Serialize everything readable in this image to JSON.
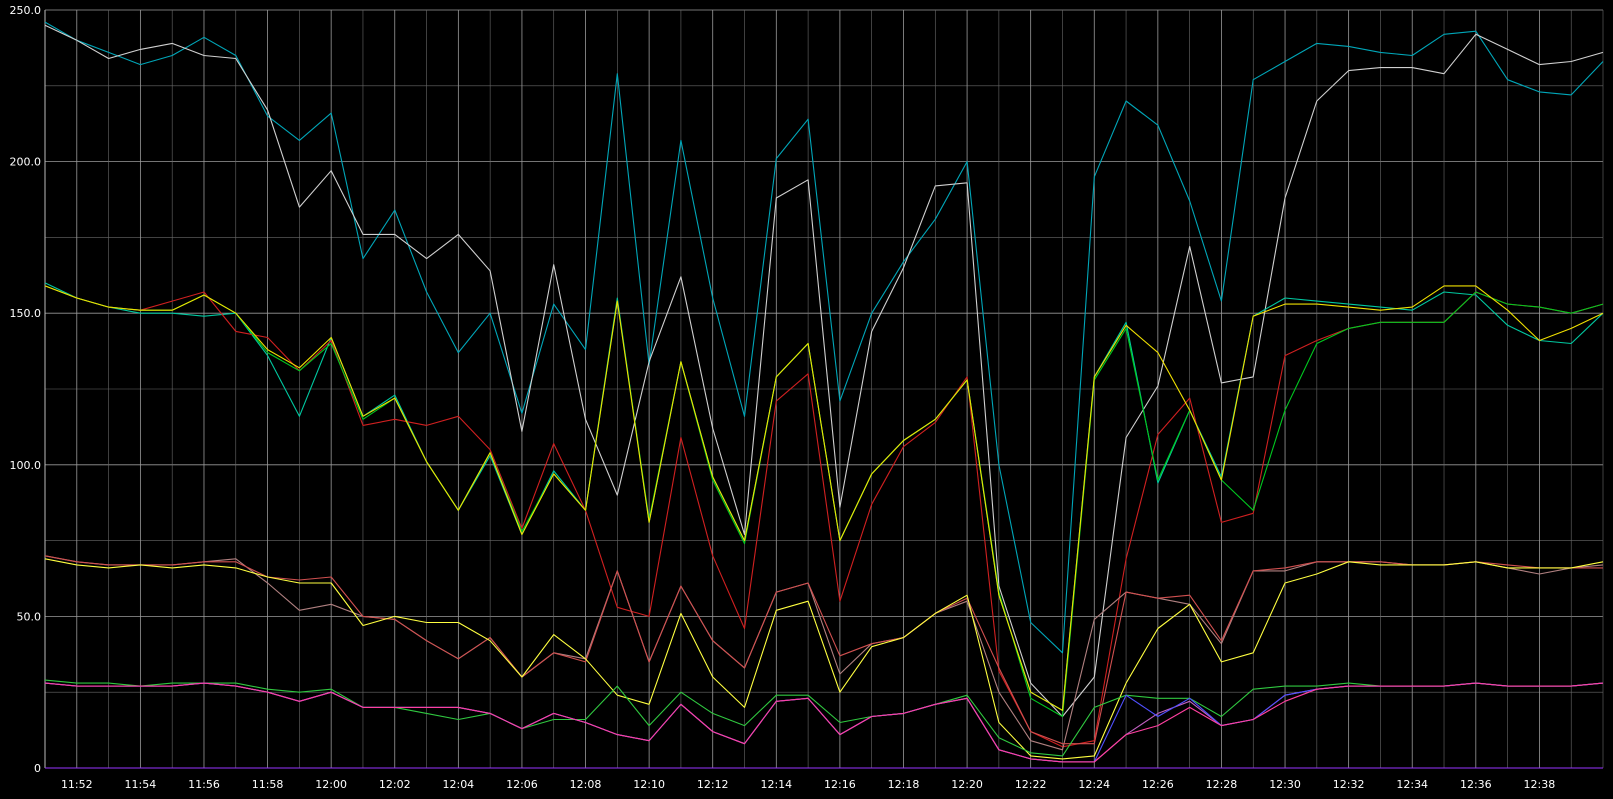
{
  "chart_data": {
    "type": "line",
    "title": "",
    "xlabel": "",
    "ylabel": "",
    "ylim": [
      0,
      250
    ],
    "grid": true,
    "legend": "none",
    "background": "#000000",
    "y_ticks": [
      {
        "value": 0,
        "label": "0"
      },
      {
        "value": 50,
        "label": "50.0"
      },
      {
        "value": 100,
        "label": "100.0"
      },
      {
        "value": 150,
        "label": "150.0"
      },
      {
        "value": 200,
        "label": "200.0"
      },
      {
        "value": 250,
        "label": "250.0"
      }
    ],
    "x_ticks": [
      {
        "index": 1,
        "label": "11:52"
      },
      {
        "index": 3,
        "label": "11:54"
      },
      {
        "index": 5,
        "label": "11:56"
      },
      {
        "index": 7,
        "label": "11:58"
      },
      {
        "index": 9,
        "label": "12:00"
      },
      {
        "index": 11,
        "label": "12:02"
      },
      {
        "index": 13,
        "label": "12:04"
      },
      {
        "index": 15,
        "label": "12:06"
      },
      {
        "index": 17,
        "label": "12:08"
      },
      {
        "index": 19,
        "label": "12:10"
      },
      {
        "index": 21,
        "label": "12:12"
      },
      {
        "index": 23,
        "label": "12:14"
      },
      {
        "index": 25,
        "label": "12:16"
      },
      {
        "index": 27,
        "label": "12:18"
      },
      {
        "index": 29,
        "label": "12:20"
      },
      {
        "index": 31,
        "label": "12:22"
      },
      {
        "index": 33,
        "label": "12:24"
      },
      {
        "index": 35,
        "label": "12:26"
      },
      {
        "index": 37,
        "label": "12:28"
      },
      {
        "index": 39,
        "label": "12:30"
      },
      {
        "index": 41,
        "label": "12:32"
      },
      {
        "index": 43,
        "label": "12:34"
      },
      {
        "index": 45,
        "label": "12:36"
      },
      {
        "index": 47,
        "label": "12:38"
      }
    ],
    "categories": [
      "11:51",
      "11:52",
      "11:53",
      "11:54",
      "11:55",
      "11:56",
      "11:57",
      "11:58",
      "11:59",
      "12:00",
      "12:01",
      "12:02",
      "12:03",
      "12:04",
      "12:05",
      "12:06",
      "12:07",
      "12:08",
      "12:09",
      "12:10",
      "12:11",
      "12:12",
      "12:13",
      "12:14",
      "12:15",
      "12:16",
      "12:17",
      "12:18",
      "12:19",
      "12:20",
      "12:21",
      "12:22",
      "12:23",
      "12:24",
      "12:25",
      "12:26",
      "12:27",
      "12:28",
      "12:29",
      "12:30",
      "12:31",
      "12:32",
      "12:33",
      "12:34",
      "12:35",
      "12:36",
      "12:37",
      "12:38",
      "12:39",
      "12:40"
    ],
    "series": [
      {
        "color": "#00a6b8",
        "values": [
          246,
          240,
          236,
          232,
          235,
          241,
          235,
          215,
          207,
          216,
          168,
          184,
          157,
          137,
          150,
          117,
          153,
          138,
          229,
          133,
          207,
          155,
          116,
          201,
          214,
          121,
          150,
          167,
          181,
          200,
          100,
          48,
          38,
          195,
          220,
          212,
          187,
          154,
          227,
          233,
          239,
          238,
          236,
          235,
          242,
          243,
          227,
          223,
          222,
          233
        ]
      },
      {
        "color": "#d0d0d0",
        "values": [
          245,
          240,
          234,
          237,
          239,
          235,
          234,
          217,
          185,
          197,
          176,
          176,
          168,
          176,
          164,
          111,
          166,
          115,
          90,
          134,
          162,
          112,
          77,
          188,
          194,
          86,
          144,
          165,
          192,
          193,
          60,
          28,
          17,
          30,
          109,
          126,
          172,
          127,
          129,
          188,
          220,
          230,
          231,
          231,
          229,
          242,
          237,
          232,
          233,
          236
        ]
      },
      {
        "color": "#00c8a0",
        "values": [
          160,
          155,
          152,
          150,
          150,
          149,
          150,
          136,
          116,
          142,
          116,
          123,
          101,
          85,
          103,
          77,
          98,
          85,
          155,
          81,
          134,
          96,
          75,
          129,
          140,
          75,
          97,
          108,
          115,
          128,
          57,
          25,
          19,
          129,
          147,
          94,
          118,
          96,
          149,
          155,
          154,
          153,
          152,
          151,
          157,
          156,
          146,
          141,
          140,
          150
        ]
      },
      {
        "color": "#d02020",
        "values": [
          159,
          155,
          152,
          151,
          154,
          157,
          144,
          142,
          131,
          141,
          113,
          115,
          113,
          116,
          105,
          79,
          107,
          85,
          53,
          50,
          109,
          70,
          46,
          121,
          130,
          55,
          87,
          106,
          114,
          129,
          32,
          12,
          7,
          9,
          69,
          110,
          122,
          81,
          84,
          136,
          141,
          145,
          147,
          147,
          147,
          157,
          153,
          152,
          150,
          153
        ]
      },
      {
        "color": "#00c820",
        "values": [
          159,
          155,
          152,
          151,
          151,
          156,
          150,
          137,
          131,
          140,
          115,
          122,
          101,
          85,
          104,
          78,
          97,
          85,
          154,
          82,
          134,
          95,
          74,
          129,
          140,
          75,
          97,
          108,
          115,
          128,
          58,
          23,
          17,
          128,
          145,
          95,
          118,
          95,
          85,
          118,
          140,
          145,
          147,
          147,
          147,
          157,
          153,
          152,
          150,
          153
        ]
      },
      {
        "color": "#f0e000",
        "values": [
          159,
          155,
          152,
          151,
          151,
          156,
          150,
          138,
          132,
          142,
          116,
          122,
          101,
          85,
          104,
          77,
          97,
          85,
          154,
          81,
          134,
          96,
          75,
          129,
          140,
          75,
          97,
          108,
          115,
          128,
          57,
          25,
          19,
          129,
          146,
          137,
          118,
          95,
          149,
          153,
          153,
          152,
          151,
          152,
          159,
          159,
          151,
          141,
          145,
          150
        ]
      },
      {
        "color": "#b08080",
        "values": [
          70,
          68,
          67,
          67,
          67,
          68,
          69,
          61,
          52,
          54,
          50,
          49,
          42,
          36,
          43,
          30,
          38,
          36,
          65,
          35,
          60,
          42,
          33,
          58,
          61,
          31,
          41,
          43,
          51,
          55,
          25,
          9,
          6,
          49,
          58,
          56,
          54,
          41,
          65,
          65,
          68,
          68,
          68,
          67,
          67,
          68,
          66,
          64,
          66,
          67
        ]
      },
      {
        "color": "#d05050",
        "values": [
          70,
          68,
          67,
          67,
          67,
          68,
          68,
          63,
          62,
          63,
          50,
          49,
          42,
          36,
          43,
          30,
          38,
          35,
          65,
          35,
          60,
          42,
          33,
          58,
          61,
          37,
          41,
          43,
          51,
          56,
          33,
          12,
          8,
          8,
          58,
          56,
          57,
          42,
          65,
          66,
          68,
          68,
          68,
          67,
          67,
          68,
          67,
          66,
          66,
          66
        ]
      },
      {
        "color": "#ffff40",
        "values": [
          69,
          67,
          66,
          67,
          66,
          67,
          66,
          63,
          61,
          61,
          47,
          50,
          48,
          48,
          42,
          30,
          44,
          36,
          24,
          21,
          51,
          30,
          20,
          52,
          55,
          25,
          40,
          43,
          51,
          57,
          15,
          4,
          3,
          4,
          28,
          46,
          54,
          35,
          38,
          61,
          64,
          68,
          67,
          67,
          67,
          68,
          66,
          66,
          66,
          68
        ]
      },
      {
        "color": "#30c840",
        "values": [
          29,
          28,
          28,
          27,
          28,
          28,
          28,
          26,
          25,
          26,
          20,
          20,
          18,
          16,
          18,
          13,
          16,
          16,
          27,
          14,
          25,
          18,
          14,
          24,
          24,
          15,
          17,
          18,
          21,
          24,
          10,
          5,
          4,
          20,
          24,
          23,
          23,
          17,
          26,
          27,
          27,
          28,
          27,
          27,
          27,
          28,
          27,
          27,
          27,
          28
        ]
      },
      {
        "color": "#c060c0",
        "values": [
          28,
          27,
          27,
          27,
          27,
          28,
          27,
          25,
          22,
          25,
          20,
          20,
          20,
          20,
          18,
          13,
          18,
          15,
          11,
          9,
          21,
          12,
          8,
          22,
          23,
          11,
          17,
          18,
          21,
          23,
          6,
          3,
          2,
          2,
          11,
          18,
          22,
          14,
          16,
          24,
          26,
          27,
          27,
          27,
          27,
          28,
          27,
          27,
          27,
          28
        ]
      },
      {
        "color": "#5050ff",
        "values": [
          28,
          27,
          27,
          27,
          27,
          28,
          27,
          25,
          22,
          25,
          20,
          20,
          20,
          20,
          18,
          13,
          18,
          15,
          11,
          9,
          21,
          12,
          8,
          22,
          23,
          11,
          17,
          18,
          21,
          23,
          6,
          3,
          2,
          2,
          24,
          17,
          23,
          14,
          16,
          24,
          26,
          27,
          27,
          27,
          27,
          28,
          27,
          27,
          27,
          28
        ]
      },
      {
        "color": "#ff40a0",
        "values": [
          28,
          27,
          27,
          27,
          27,
          28,
          27,
          25,
          22,
          25,
          20,
          20,
          20,
          20,
          18,
          13,
          18,
          15,
          11,
          9,
          21,
          12,
          8,
          22,
          23,
          11,
          17,
          18,
          21,
          23,
          6,
          3,
          2,
          2,
          11,
          14,
          20,
          14,
          16,
          22,
          26,
          27,
          27,
          27,
          27,
          28,
          27,
          27,
          27,
          28
        ]
      },
      {
        "color": "#9933ff",
        "values": [
          0,
          0,
          0,
          0,
          0,
          0,
          0,
          0,
          0,
          0,
          0,
          0,
          0,
          0,
          0,
          0,
          0,
          0,
          0,
          0,
          0,
          0,
          0,
          0,
          0,
          0,
          0,
          0,
          0,
          0,
          0,
          0,
          0,
          0,
          0,
          0,
          0,
          0,
          0,
          0,
          0,
          0,
          0,
          0,
          0,
          0,
          0,
          0,
          0,
          0
        ]
      }
    ]
  }
}
